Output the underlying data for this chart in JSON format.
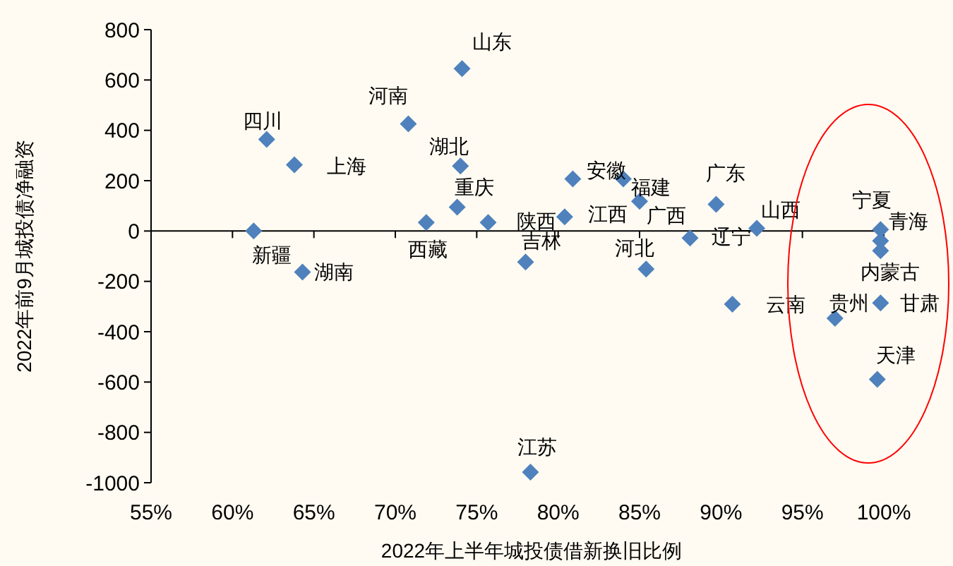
{
  "chart_data": {
    "type": "scatter",
    "xlabel": "2022年上半年城投债借新换旧比例",
    "ylabel": "2022年前9月城投债净融资",
    "xlim": [
      55,
      100
    ],
    "ylim": [
      -1000,
      800
    ],
    "xticks": [
      {
        "value": 55,
        "label": "55%"
      },
      {
        "value": 60,
        "label": "60%"
      },
      {
        "value": 65,
        "label": "65%"
      },
      {
        "value": 70,
        "label": "70%"
      },
      {
        "value": 75,
        "label": "75%"
      },
      {
        "value": 80,
        "label": "80%"
      },
      {
        "value": 85,
        "label": "85%"
      },
      {
        "value": 90,
        "label": "90%"
      },
      {
        "value": 95,
        "label": "95%"
      },
      {
        "value": 100,
        "label": "100%"
      }
    ],
    "yticks": [
      -1000,
      -800,
      -600,
      -400,
      -200,
      0,
      200,
      400,
      600,
      800
    ],
    "marker": "diamond",
    "series": [
      {
        "color": "#4f81bd",
        "x": [
          61.3,
          62.1,
          63.8,
          64.3,
          70.8,
          74.1,
          74.0,
          73.8,
          71.9,
          75.7,
          78.0,
          80.4,
          78.3,
          80.9,
          84.0,
          85.0,
          85.4,
          88.1,
          89.7,
          90.7,
          92.2,
          99.8,
          99.8,
          99.8,
          99.8,
          97.0,
          99.6
        ],
        "values": [
          0,
          364,
          263,
          -163,
          426,
          645,
          258,
          95,
          34,
          34,
          -123,
          56,
          -958,
          207,
          207,
          118,
          -151,
          -28,
          106,
          -291,
          11,
          6,
          -39,
          -78,
          -286,
          -347,
          -589
        ]
      }
    ],
    "annotations": [
      {
        "text": "山东",
        "x": 74.1,
        "y": 645
      },
      {
        "text": "四川",
        "x": 62.1,
        "y": 364
      },
      {
        "text": "河南",
        "x": 70.8,
        "y": 426
      },
      {
        "text": "上海",
        "x": 63.8,
        "y": 263
      },
      {
        "text": "湖北",
        "x": 74.0,
        "y": 258
      },
      {
        "text": "重庆",
        "x": 73.8,
        "y": 95
      },
      {
        "text": "新疆",
        "x": 61.3,
        "y": 0
      },
      {
        "text": "湖南",
        "x": 64.3,
        "y": -163
      },
      {
        "text": "西藏",
        "x": 71.9,
        "y": 34
      },
      {
        "text": "陕西",
        "x": 80.4,
        "y": 56
      },
      {
        "text": "吉林",
        "x": 78.0,
        "y": -123
      },
      {
        "text": "江苏",
        "x": 78.3,
        "y": -958
      },
      {
        "text": "安徽",
        "x": 80.9,
        "y": 207
      },
      {
        "text": "福建",
        "x": 85.0,
        "y": 118
      },
      {
        "text": "江西",
        "x": 84.0,
        "y": 207
      },
      {
        "text": "广西",
        "x": 88.1,
        "y": -28
      },
      {
        "text": "河北",
        "x": 85.4,
        "y": -151
      },
      {
        "text": "广东",
        "x": 89.7,
        "y": 106
      },
      {
        "text": "辽宁",
        "x": 88.1,
        "y": -28
      },
      {
        "text": "山西",
        "x": 92.2,
        "y": 11
      },
      {
        "text": "云南",
        "x": 90.7,
        "y": -291
      },
      {
        "text": "宁夏",
        "x": 99.8,
        "y": 6
      },
      {
        "text": "青海",
        "x": 99.8,
        "y": 6
      },
      {
        "text": "内蒙古",
        "x": 99.8,
        "y": -78
      },
      {
        "text": "贵州",
        "x": 97.0,
        "y": -347
      },
      {
        "text": "甘肃",
        "x": 99.8,
        "y": -286
      },
      {
        "text": "天津",
        "x": 99.6,
        "y": -589
      }
    ]
  }
}
